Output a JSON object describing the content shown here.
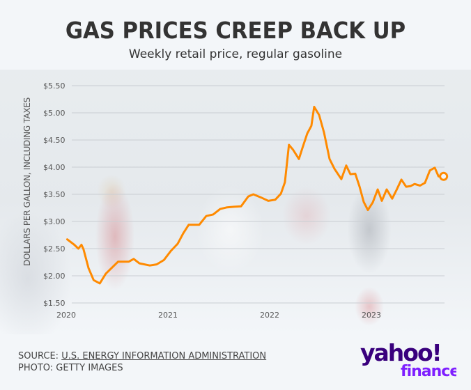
{
  "header": {
    "title": "GAS PRICES CREEP BACK UP",
    "subtitle": "Weekly retail price, regular gasoline"
  },
  "footer": {
    "source_prefix": "SOURCE: ",
    "source_link": "U.S. ENERGY INFORMATION ADMINISTRATION",
    "photo_credit": "PHOTO: GETTY IMAGES"
  },
  "logo": {
    "word": "yahoo!",
    "sub": "finance",
    "color_dark": "#39007d",
    "color_light": "#7e1fff"
  },
  "colors": {
    "line": "#ff8a00",
    "grid": "#c9cdd2",
    "text": "#333333"
  },
  "chart_data": {
    "type": "line",
    "title": "GAS PRICES CREEP BACK UP",
    "subtitle": "Weekly retail price, regular gasoline",
    "xlabel": "",
    "ylabel": "DOLLARS PER GALLON, INCLUDING TAXES",
    "xlim": [
      2020,
      2023.88
    ],
    "ylim": [
      1.5,
      5.5
    ],
    "grid": true,
    "x_ticks": [
      2020,
      2021,
      2022,
      2023
    ],
    "x_tick_labels": [
      "2020",
      "2021",
      "2022",
      "2023"
    ],
    "y_ticks": [
      1.5,
      2.0,
      2.5,
      3.0,
      3.5,
      4.0,
      4.5,
      5.0,
      5.5
    ],
    "y_tick_labels": [
      "$1.50",
      "$2.00",
      "$2.50",
      "$3.00",
      "$3.50",
      "$4.00",
      "$4.50",
      "$5.00",
      "$5.50"
    ],
    "end_marker": true,
    "series": [
      {
        "name": "Regular gasoline",
        "x": [
          2020.01,
          2020.08,
          2020.12,
          2020.15,
          2020.17,
          2020.22,
          2020.27,
          2020.33,
          2020.39,
          2020.45,
          2020.51,
          2020.616,
          2020.664,
          2020.719,
          2020.822,
          2020.89,
          2020.96,
          2021.03,
          2021.096,
          2021.15,
          2021.205,
          2021.308,
          2021.377,
          2021.445,
          2021.514,
          2021.582,
          2021.65,
          2021.719,
          2021.79,
          2021.84,
          2021.918,
          2021.986,
          2022.055,
          2022.11,
          2022.15,
          2022.19,
          2022.23,
          2022.288,
          2022.322,
          2022.37,
          2022.41,
          2022.438,
          2022.486,
          2022.534,
          2022.589,
          2022.637,
          2022.705,
          2022.753,
          2022.794,
          2022.842,
          2022.884,
          2022.925,
          2022.966,
          2023.014,
          2023.062,
          2023.103,
          2023.151,
          2023.205,
          2023.247,
          2023.295,
          2023.342,
          2023.384,
          2023.425,
          2023.479,
          2023.527,
          2023.575,
          2023.623,
          2023.66,
          2023.71
        ],
        "values": [
          2.67,
          2.57,
          2.5,
          2.57,
          2.49,
          2.14,
          1.92,
          1.86,
          2.04,
          2.15,
          2.26,
          2.26,
          2.31,
          2.23,
          2.19,
          2.21,
          2.29,
          2.46,
          2.59,
          2.78,
          2.94,
          2.94,
          3.1,
          3.13,
          3.23,
          3.26,
          3.27,
          3.28,
          3.46,
          3.5,
          3.44,
          3.38,
          3.4,
          3.51,
          3.72,
          4.41,
          4.32,
          4.15,
          4.35,
          4.62,
          4.76,
          5.11,
          4.96,
          4.64,
          4.15,
          3.97,
          3.78,
          4.03,
          3.87,
          3.88,
          3.64,
          3.36,
          3.21,
          3.35,
          3.59,
          3.38,
          3.59,
          3.42,
          3.58,
          3.77,
          3.64,
          3.65,
          3.69,
          3.66,
          3.71,
          3.94,
          3.99,
          3.83,
          3.83
        ]
      }
    ]
  }
}
